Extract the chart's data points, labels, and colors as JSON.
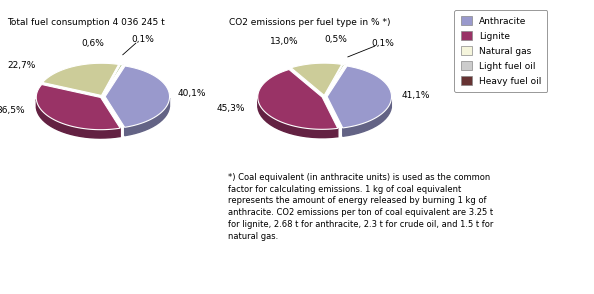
{
  "chart1_title": "Total fuel consumption 4 036 245 t",
  "chart2_title": "CO2 emissions per fuel type in % *)",
  "pie1_values": [
    40.1,
    36.5,
    22.7,
    0.6,
    0.1
  ],
  "pie2_values": [
    41.1,
    45.3,
    13.0,
    0.5,
    0.1
  ],
  "pie1_labels": [
    "40,1%",
    "36,5%",
    "22,7%",
    "0,6%",
    "0,1%"
  ],
  "pie2_labels": [
    "41,1%",
    "45,3%",
    "13,0%",
    "0,5%",
    "0,1%"
  ],
  "colors": [
    "#9999cc",
    "#993366",
    "#cccc99",
    "#b8c8a0",
    "#663333"
  ],
  "legend_labels": [
    "Anthracite",
    "Lignite",
    "Natural gas",
    "Light fuel oil",
    "Heavy fuel oil"
  ],
  "legend_colors": [
    "#9999cc",
    "#993366",
    "#f5f5dc",
    "#cccccc",
    "#663333"
  ],
  "footnote": "*) Coal equivalent (in anthracite units) is used as the common\nfactor for calculating emissions. 1 kg of coal equivalent\nrepresents the amount of energy released by burning 1 kg of\nanthracite. CO2 emissions per ton of coal equivalent are 3.25 t\nfor lignite, 2.68 t for anthracite, 2.3 t for crude oil, and 1.5 t for\nnatural gas.",
  "background_color": "#ffffff"
}
